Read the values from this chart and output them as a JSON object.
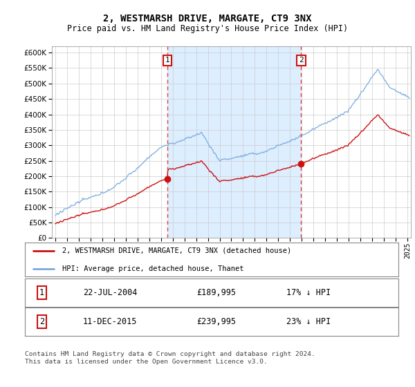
{
  "title": "2, WESTMARSH DRIVE, MARGATE, CT9 3NX",
  "subtitle": "Price paid vs. HM Land Registry's House Price Index (HPI)",
  "hpi_label": "HPI: Average price, detached house, Thanet",
  "price_label": "2, WESTMARSH DRIVE, MARGATE, CT9 3NX (detached house)",
  "sale1_date": "22-JUL-2004",
  "sale1_price": 189995,
  "sale1_pct": "17% ↓ HPI",
  "sale1_year_num": 2004.55,
  "sale2_date": "11-DEC-2015",
  "sale2_price": 239995,
  "sale2_pct": "23% ↓ HPI",
  "sale2_year_num": 2015.95,
  "footnote": "Contains HM Land Registry data © Crown copyright and database right 2024.\nThis data is licensed under the Open Government Licence v3.0.",
  "ylim_min": 0,
  "ylim_max": 620000,
  "ytick_step": 50000,
  "hpi_color": "#7aaadd",
  "price_color": "#cc1111",
  "vline_color": "#dd4444",
  "shade_color": "#ddeeff",
  "plot_bg": "#ffffff",
  "grid_color": "#cccccc"
}
